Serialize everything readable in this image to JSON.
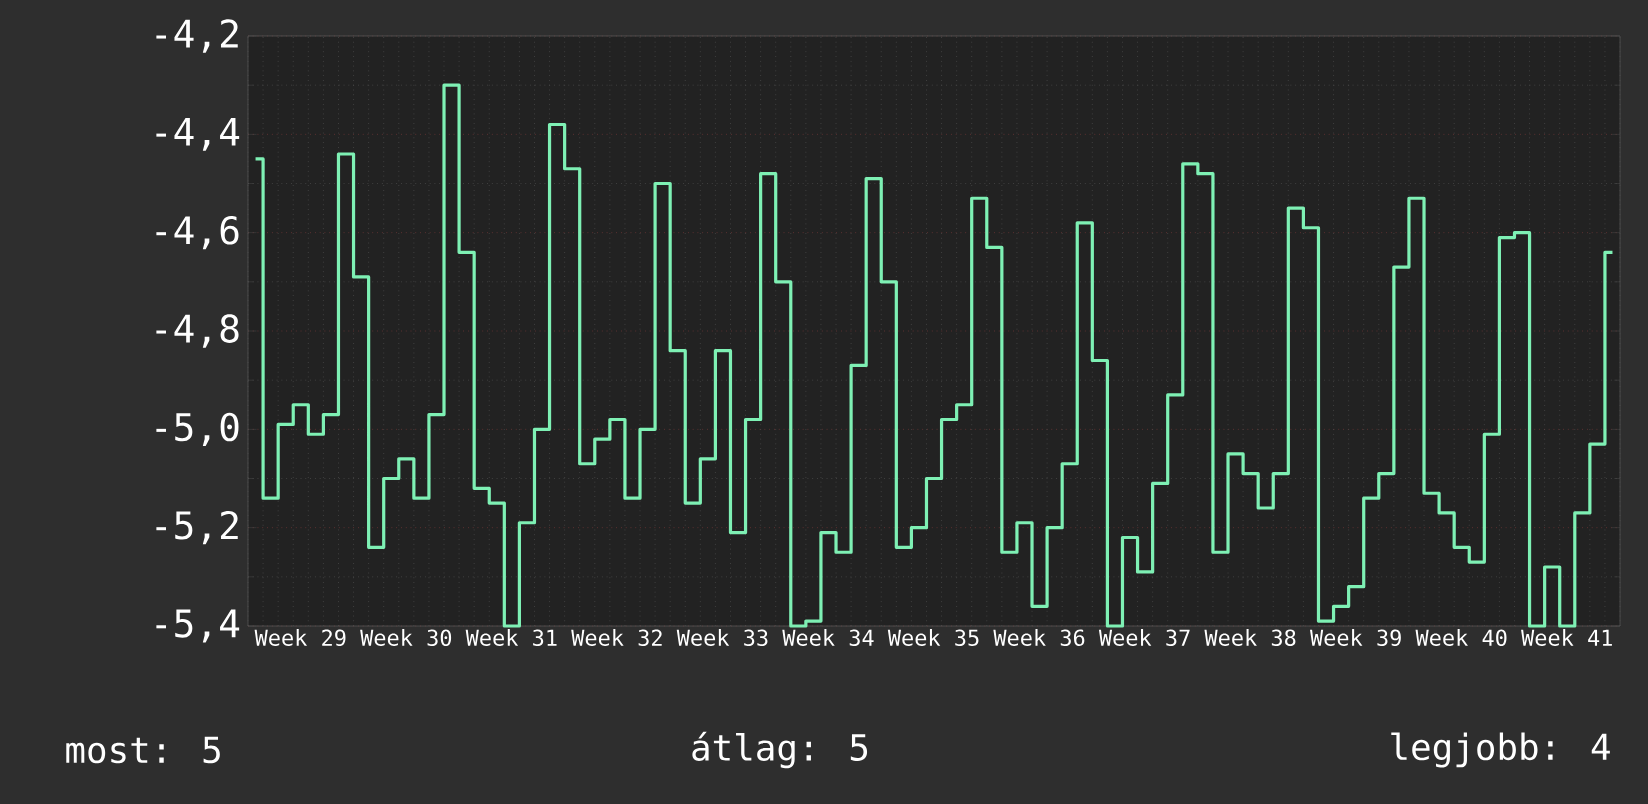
{
  "chart_data": {
    "type": "step",
    "categories": [
      null,
      null,
      null,
      "Week 29",
      null,
      null,
      null,
      null,
      null,
      null,
      "Week 30",
      null,
      null,
      null,
      null,
      null,
      null,
      "Week 31",
      null,
      null,
      null,
      null,
      null,
      null,
      "Week 32",
      null,
      null,
      null,
      null,
      null,
      null,
      "Week 33",
      null,
      null,
      null,
      null,
      null,
      null,
      "Week 34",
      null,
      null,
      null,
      null,
      null,
      null,
      "Week 35",
      null,
      null,
      null,
      null,
      null,
      null,
      "Week 36",
      null,
      null,
      null,
      null,
      null,
      null,
      "Week 37",
      null,
      null,
      null,
      null,
      null,
      null,
      "Week 38",
      null,
      null,
      null,
      null,
      null,
      null,
      "Week 39",
      null,
      null,
      null,
      null,
      null,
      null,
      "Week 40",
      null,
      null,
      null,
      null,
      null,
      null,
      "Week 41",
      null,
      null,
      null
    ],
    "series": [
      {
        "color": "#7ef0b4",
        "values": [
          -4.45,
          -5.14,
          -4.99,
          -4.95,
          -5.01,
          -4.97,
          -4.44,
          -4.69,
          -5.24,
          -5.1,
          -5.06,
          -5.14,
          -4.97,
          -4.3,
          -4.64,
          -5.12,
          -5.15,
          -5.4,
          -5.19,
          -5.0,
          -4.38,
          -4.47,
          -5.07,
          -5.02,
          -4.98,
          -5.14,
          -5.0,
          -4.5,
          -4.84,
          -5.15,
          -5.06,
          -4.84,
          -5.21,
          -4.98,
          -4.48,
          -4.7,
          -5.4,
          -5.39,
          -5.21,
          -5.25,
          -4.87,
          -4.49,
          -4.7,
          -5.24,
          -5.2,
          -5.1,
          -4.98,
          -4.95,
          -4.53,
          -4.63,
          -5.25,
          -5.19,
          -5.36,
          -5.2,
          -5.07,
          -4.58,
          -4.86,
          -5.4,
          -5.22,
          -5.29,
          -5.11,
          -4.93,
          -4.46,
          -4.48,
          -5.25,
          -5.05,
          -5.09,
          -5.16,
          -5.09,
          -4.55,
          -4.59,
          -5.39,
          -5.36,
          -5.32,
          -5.14,
          -5.09,
          -4.67,
          -4.53,
          -5.13,
          -5.17,
          -5.24,
          -5.27,
          -5.01,
          -4.61,
          -4.6,
          -5.4,
          -5.28,
          -5.4,
          -5.17,
          -5.03,
          -4.64
        ]
      }
    ],
    "ylim": [
      -5.4,
      -4.2
    ],
    "yticks": [
      {
        "value": -5.4,
        "label": "-5,4"
      },
      {
        "value": -5.2,
        "label": "-5,2"
      },
      {
        "value": -5.0,
        "label": "-5,0"
      },
      {
        "value": -4.8,
        "label": "-4,8"
      },
      {
        "value": -4.6,
        "label": "-4,6"
      },
      {
        "value": -4.4,
        "label": "-4,4"
      },
      {
        "value": -4.2,
        "label": "-4,2"
      }
    ],
    "grid": true,
    "annotations": [
      "most: 5",
      "átlag: 5",
      "legjobb: 4"
    ]
  }
}
